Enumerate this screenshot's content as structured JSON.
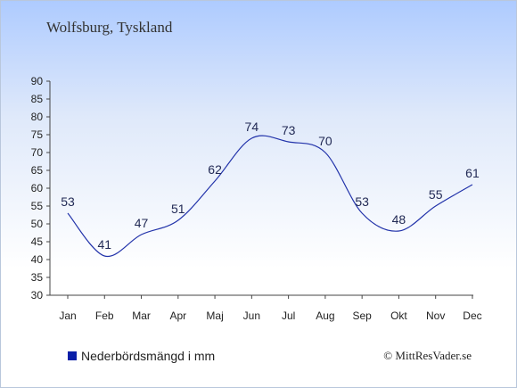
{
  "header": {
    "title": "Wolfsburg, Tyskland"
  },
  "legend": {
    "label": "Nederbördsmängd i mm",
    "color": "#0a1fa8"
  },
  "credit": {
    "text": "© MittResVader.se"
  },
  "chart_data": {
    "type": "line",
    "categories": [
      "Jan",
      "Feb",
      "Mar",
      "Apr",
      "Maj",
      "Jun",
      "Jul",
      "Aug",
      "Sep",
      "Okt",
      "Nov",
      "Dec"
    ],
    "series": [
      {
        "name": "Nederbördsmängd i mm",
        "values": [
          53,
          41,
          47,
          51,
          62,
          74,
          73,
          70,
          53,
          48,
          55,
          61
        ]
      }
    ],
    "ylim": [
      30,
      90
    ],
    "yticks": [
      30,
      35,
      40,
      45,
      50,
      55,
      60,
      65,
      70,
      75,
      80,
      85,
      90
    ],
    "line_color": "#2233aa",
    "grid": false,
    "legend_position": "bottom-left"
  }
}
